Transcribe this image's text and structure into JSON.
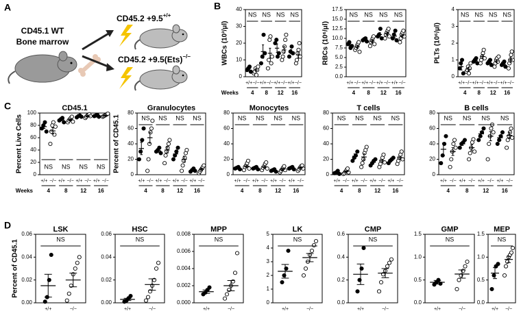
{
  "panel_labels": [
    "A",
    "B",
    "C",
    "D"
  ],
  "diagram": {
    "donor": [
      "CD45.1 WT",
      "Bone marrow"
    ],
    "recipients": [
      {
        "text": "CD45.2 +9.5",
        "sup": "+/+"
      },
      {
        "text": "CD45.2 +9.5(Ets)",
        "sup": "−/−"
      }
    ]
  },
  "chart_data": [
    {
      "type": "dot",
      "ylabel": "WBCs (10³/μl)",
      "timepoint_label": "Weeks",
      "timepoints": [
        "4",
        "8",
        "12",
        "16"
      ],
      "categories": [
        "+/+",
        "−/−",
        "+/+",
        "−/−",
        "+/+",
        "−/−",
        "+/+",
        "−/−"
      ],
      "markers": [
        "filled",
        "open"
      ],
      "points": [
        [
          4,
          5,
          6,
          3
        ],
        [
          2,
          3,
          5,
          1,
          4,
          6
        ],
        [
          8,
          12,
          25,
          14
        ],
        [
          5,
          10,
          22,
          24,
          8,
          12
        ],
        [
          20,
          22,
          12,
          14
        ],
        [
          10,
          12,
          15,
          18,
          22,
          25
        ],
        [
          12,
          15,
          18,
          14
        ],
        [
          8,
          10,
          14,
          16,
          20,
          12
        ]
      ],
      "mean": [
        5,
        4,
        15,
        14,
        17,
        16,
        15,
        13
      ],
      "sem": [
        0.7,
        0.8,
        4,
        3,
        2.5,
        2,
        1.2,
        2
      ],
      "ylim": [
        0,
        40
      ],
      "yticks": [
        0,
        10,
        20,
        30,
        40
      ],
      "annotations": [
        "NS",
        "NS",
        "NS",
        "NS"
      ],
      "annotation_position": "top"
    },
    {
      "type": "dot",
      "ylabel": "RBCs (10⁶/μl)",
      "timepoints": [
        "4",
        "8",
        "12",
        "16"
      ],
      "categories": [
        "+/+",
        "−/−",
        "+/+",
        "−/−",
        "+/+",
        "−/−",
        "+/+",
        "−/−"
      ],
      "markers": [
        "filled",
        "open"
      ],
      "points": [
        [
          8.5,
          9,
          7.5,
          8
        ],
        [
          7,
          7.5,
          8,
          8.5,
          9,
          6.5
        ],
        [
          9.5,
          9.8,
          10,
          9.2
        ],
        [
          8,
          9,
          9.5,
          10,
          10.5,
          8.5
        ],
        [
          10.5,
          11,
          12.5,
          10
        ],
        [
          10,
          11,
          11.5,
          12,
          12.5,
          10.5
        ],
        [
          10,
          11,
          12,
          9.5
        ],
        [
          9,
          10,
          11,
          11.5,
          12,
          10.5
        ]
      ],
      "mean": [
        8.3,
        7.8,
        9.6,
        9.3,
        11,
        11.3,
        10.6,
        10.7
      ],
      "sem": [
        0.3,
        0.4,
        0.2,
        0.4,
        0.5,
        0.4,
        0.5,
        0.4
      ],
      "ylim": [
        0,
        17.5
      ],
      "yticks": [
        {
          "value": 0,
          "label": "0.0"
        },
        2.5,
        {
          "value": 5,
          "label": "5.0"
        },
        7.5,
        {
          "value": 10,
          "label": "10.0"
        },
        12.5,
        {
          "value": 15,
          "label": "15.0"
        },
        17.5
      ],
      "annotations": [
        "NS",
        "NS",
        "NS",
        "NS"
      ],
      "annotation_position": "top"
    },
    {
      "type": "dot",
      "ylabel": "PLTs (10⁶/μl)",
      "timepoints": [
        "4",
        "8",
        "12",
        "16"
      ],
      "categories": [
        "+/+",
        "−/−",
        "+/+",
        "−/−",
        "+/+",
        "−/−",
        "+/+",
        "−/−"
      ],
      "markers": [
        "filled",
        "open"
      ],
      "points": [
        [
          0.5,
          0.8,
          1.0,
          0.2
        ],
        [
          0.3,
          0.4,
          0.6,
          0.2,
          0.5,
          0.8
        ],
        [
          0.9,
          1.0,
          1.1,
          0.8
        ],
        [
          0.8,
          1.0,
          1.2,
          1.4,
          1.6,
          1.1
        ],
        [
          0.8,
          0.9,
          1.0,
          0.7
        ],
        [
          0.6,
          0.8,
          1.0,
          1.1,
          0.9,
          1.2
        ],
        [
          0.7,
          0.8,
          0.9,
          0.6
        ],
        [
          0.5,
          0.8,
          1.0,
          1.3,
          1.5,
          1.0
        ]
      ],
      "mean": [
        0.6,
        0.45,
        0.95,
        1.2,
        0.85,
        0.93,
        0.75,
        1.0
      ],
      "sem": [
        0.2,
        0.1,
        0.06,
        0.12,
        0.06,
        0.09,
        0.06,
        0.15
      ],
      "ylim": [
        0,
        4
      ],
      "yticks": [
        0,
        1,
        2,
        3,
        4
      ],
      "annotations": [
        "NS",
        "NS",
        "NS",
        "NS"
      ],
      "annotation_position": "top"
    },
    {
      "type": "dot",
      "title": "CD45.1",
      "ylabel": "Percent Live Cells",
      "timepoint_label": "Weeks",
      "timepoints": [
        "4",
        "8",
        "12",
        "16"
      ],
      "categories": [
        "+/+",
        "−/−",
        "+/+",
        "−/−",
        "+/+",
        "−/−",
        "+/+",
        "−/−"
      ],
      "markers": [
        "filled",
        "open"
      ],
      "points": [
        [
          75,
          80,
          85,
          70
        ],
        [
          50,
          70,
          80,
          85,
          65,
          78
        ],
        [
          88,
          90,
          92,
          85
        ],
        [
          85,
          88,
          90,
          92,
          94,
          86
        ],
        [
          93,
          95,
          96,
          94
        ],
        [
          92,
          94,
          96,
          97,
          98,
          95
        ],
        [
          95,
          96,
          97,
          94
        ],
        [
          94,
          95,
          96,
          97,
          98,
          99
        ]
      ],
      "mean": [
        78,
        71,
        89,
        89,
        95,
        95,
        96,
        96
      ],
      "sem": [
        3,
        5,
        1.5,
        1.3,
        0.6,
        0.9,
        0.6,
        0.7
      ],
      "ylim": [
        0,
        100
      ],
      "yticks": [
        0,
        20,
        40,
        60,
        80,
        100
      ],
      "annotations": [
        "NS",
        "NS",
        "NS",
        "NS"
      ],
      "annotation_position": "bottom"
    },
    {
      "type": "dot",
      "title": "Granulocytes",
      "ylabel": "Percent of CD45.1",
      "timepoints": [
        "4",
        "8",
        "12",
        "16"
      ],
      "categories": [
        "+/+",
        "−/−",
        "+/+",
        "−/−",
        "+/+",
        "−/−",
        "+/+",
        "−/−"
      ],
      "markers": [
        "filled",
        "open"
      ],
      "points": [
        [
          20,
          30,
          45,
          60
        ],
        [
          5,
          20,
          40,
          55,
          60,
          70
        ],
        [
          30,
          32,
          35,
          28
        ],
        [
          15,
          25,
          30,
          35,
          40,
          45
        ],
        [
          20,
          25,
          30,
          35
        ],
        [
          5,
          12,
          18,
          22,
          28,
          32
        ],
        [
          4,
          6,
          8,
          5
        ],
        [
          2,
          4,
          6,
          8,
          10,
          12
        ]
      ],
      "mean": [
        34,
        48,
        31,
        32,
        27,
        20,
        6,
        7
      ],
      "sem": [
        8,
        7,
        2,
        4,
        3,
        4,
        1,
        1.5
      ],
      "ylim": [
        0,
        80
      ],
      "yticks": [
        0,
        20,
        40,
        60,
        80
      ],
      "annotations": [
        "NS",
        "NS",
        "NS",
        "NS"
      ],
      "annotation_position": "top"
    },
    {
      "type": "dot",
      "title": "Monocytes",
      "timepoints": [
        "4",
        "8",
        "12",
        "16"
      ],
      "categories": [
        "+/+",
        "−/−",
        "+/+",
        "−/−",
        "+/+",
        "−/−",
        "+/+",
        "−/−"
      ],
      "markers": [
        "filled",
        "open"
      ],
      "points": [
        [
          8,
          9,
          10,
          7
        ],
        [
          6,
          10,
          12,
          15,
          18,
          8
        ],
        [
          8,
          9,
          10,
          7
        ],
        [
          6,
          9,
          11,
          14,
          16,
          8
        ],
        [
          5,
          6,
          7,
          4
        ],
        [
          3,
          5,
          7,
          9,
          11,
          6
        ],
        [
          8,
          9,
          10,
          7
        ],
        [
          5,
          7,
          9,
          11,
          12,
          8
        ]
      ],
      "mean": [
        9,
        11,
        8.5,
        10,
        5.5,
        7,
        8.5,
        9
      ],
      "sem": [
        0.6,
        1.5,
        0.6,
        1.5,
        0.6,
        1.2,
        0.6,
        1
      ],
      "ylim": [
        0,
        80
      ],
      "yticks": [
        0,
        20,
        40,
        60,
        80
      ],
      "annotations": [
        "NS",
        "NS",
        "NS",
        "NS"
      ],
      "annotation_position": "top"
    },
    {
      "type": "dot",
      "title": "T cells",
      "timepoints": [
        "4",
        "8",
        "12",
        "16"
      ],
      "categories": [
        "+/+",
        "−/−",
        "+/+",
        "−/−",
        "+/+",
        "−/−",
        "+/+",
        "−/−"
      ],
      "markers": [
        "filled",
        "open"
      ],
      "points": [
        [
          2,
          3,
          5,
          1
        ],
        [
          1,
          2,
          4,
          6,
          8,
          3
        ],
        [
          18,
          22,
          25,
          30
        ],
        [
          10,
          15,
          20,
          28,
          32,
          36
        ],
        [
          12,
          15,
          18,
          20
        ],
        [
          10,
          14,
          18,
          22,
          26,
          16
        ],
        [
          15,
          18,
          20,
          22
        ],
        [
          14,
          18,
          22,
          26,
          30,
          20
        ]
      ],
      "mean": [
        3,
        4,
        24,
        23,
        16,
        18,
        19,
        22
      ],
      "sem": [
        0.8,
        1,
        3,
        4,
        2,
        2,
        1.5,
        2
      ],
      "ylim": [
        0,
        80
      ],
      "yticks": [
        0,
        20,
        40,
        60,
        80
      ],
      "annotations": [
        "NS",
        "NS",
        "NS",
        "NS"
      ],
      "annotation_position": "top"
    },
    {
      "type": "dot",
      "title": "B cells",
      "timepoints": [
        "4",
        "8",
        "12",
        "16"
      ],
      "categories": [
        "+/+",
        "−/−",
        "+/+",
        "−/−",
        "+/+",
        "−/−",
        "+/+",
        "−/−"
      ],
      "markers": [
        "filled",
        "open"
      ],
      "points": [
        [
          15,
          25,
          40,
          50
        ],
        [
          10,
          20,
          30,
          40,
          45,
          35
        ],
        [
          35,
          40,
          42,
          45
        ],
        [
          20,
          28,
          35,
          42,
          46,
          30
        ],
        [
          45,
          50,
          55,
          60
        ],
        [
          20,
          40,
          50,
          60,
          65,
          55
        ],
        [
          40,
          45,
          50,
          55
        ],
        [
          35,
          45,
          50,
          55,
          60,
          48
        ]
      ],
      "mean": [
        33,
        30,
        40,
        35,
        53,
        50,
        48,
        51
      ],
      "sem": [
        8,
        5,
        2,
        4,
        3,
        6,
        3,
        4
      ],
      "ylim": [
        0,
        80
      ],
      "yticks": [
        0,
        20,
        40,
        60,
        80
      ],
      "annotations": [
        "NS",
        "NS",
        "NS",
        "NS"
      ],
      "annotation_position": "top"
    },
    {
      "type": "dot",
      "title": "LSK",
      "ylabel": "Percent of CD45.1",
      "categories": [
        "+/+",
        "−/−"
      ],
      "markers": [
        "filled",
        "open"
      ],
      "points": [
        [
          0.001,
          0.005,
          0.02,
          0.042
        ],
        [
          0.002,
          0.008,
          0.015,
          0.025,
          0.03,
          0.035,
          0.04
        ]
      ],
      "mean": [
        0.015,
        0.02
      ],
      "sem": [
        0.01,
        0.006
      ],
      "ylim": [
        0,
        0.06
      ],
      "yticks": [
        {
          "value": 0,
          "label": "0.00"
        },
        0.02,
        0.04,
        0.06
      ],
      "annotations": [
        "NS"
      ],
      "annotation_position": "top"
    },
    {
      "type": "dot",
      "title": "HSC",
      "categories": [
        "+/+",
        "−/−"
      ],
      "markers": [
        "filled",
        "open"
      ],
      "points": [
        [
          0.001,
          0.002,
          0.004,
          0.006
        ],
        [
          0.002,
          0.005,
          0.01,
          0.015,
          0.02,
          0.03,
          0.035
        ]
      ],
      "mean": [
        0.003,
        0.016
      ],
      "sem": [
        0.001,
        0.005
      ],
      "ylim": [
        0,
        0.06
      ],
      "yticks": [
        {
          "value": 0,
          "label": "0.00"
        },
        0.02,
        0.04,
        0.06
      ],
      "annotations": [
        "NS"
      ],
      "annotation_position": "top"
    },
    {
      "type": "dot",
      "title": "MPP",
      "categories": [
        "+/+",
        "−/−"
      ],
      "markers": [
        "filled",
        "open"
      ],
      "points": [
        [
          0.001,
          0.0012,
          0.0015,
          0.0018
        ],
        [
          0.0005,
          0.001,
          0.0015,
          0.002,
          0.0025,
          0.0035,
          0.0058
        ]
      ],
      "mean": [
        0.0013,
        0.002
      ],
      "sem": [
        0.0002,
        0.0006
      ],
      "ylim": [
        0,
        0.008
      ],
      "yticks": [
        {
          "value": 0,
          "label": "0.000"
        },
        0.002,
        0.004,
        0.006,
        0.008
      ],
      "annotations": [
        "NS"
      ],
      "annotation_position": "top"
    },
    {
      "type": "dot",
      "title": "LK",
      "categories": [
        "+/+",
        "−/−"
      ],
      "markers": [
        "filled",
        "open"
      ],
      "points": [
        [
          1.5,
          2,
          2.5,
          3.8
        ],
        [
          2,
          2.5,
          3,
          3.5,
          3.8,
          4.2,
          4.5
        ]
      ],
      "mean": [
        2.3,
        3.3
      ],
      "sem": [
        0.5,
        0.3
      ],
      "ylim": [
        0,
        5
      ],
      "yticks": [
        0,
        1,
        2,
        3,
        4,
        5
      ],
      "annotations": [
        "NS"
      ],
      "annotation_position": "top"
    },
    {
      "type": "dot",
      "title": "CMP",
      "categories": [
        "+/+",
        "−/−"
      ],
      "markers": [
        "filled",
        "open"
      ],
      "points": [
        [
          0.1,
          0.2,
          0.3,
          0.48
        ],
        [
          0.1,
          0.18,
          0.25,
          0.28,
          0.32,
          0.35,
          0.38
        ]
      ],
      "mean": [
        0.25,
        0.26
      ],
      "sem": [
        0.09,
        0.04
      ],
      "ylim": [
        0,
        0.6
      ],
      "yticks": [
        {
          "value": 0,
          "label": "0.0"
        },
        0.2,
        0.4,
        0.6
      ],
      "annotations": [
        "NS"
      ],
      "annotation_position": "top"
    },
    {
      "type": "dot",
      "title": "GMP",
      "categories": [
        "+/+",
        "−/−"
      ],
      "markers": [
        "filled",
        "open"
      ],
      "points": [
        [
          0.4,
          0.45,
          0.5,
          0.42
        ],
        [
          0.3,
          0.5,
          0.6,
          0.7,
          0.8,
          0.9
        ]
      ],
      "mean": [
        0.45,
        0.63
      ],
      "sem": [
        0.04,
        0.09
      ],
      "ylim": [
        0,
        1.5
      ],
      "yticks": [
        {
          "value": 0,
          "label": "0.0"
        },
        0.5,
        {
          "value": 1,
          "label": "1.0"
        },
        1.5
      ],
      "annotations": [
        "NS"
      ],
      "annotation_position": "top"
    },
    {
      "type": "dot",
      "title": "MEP",
      "categories": [
        "+/+",
        "−/−"
      ],
      "markers": [
        "filled",
        "open"
      ],
      "points": [
        [
          0.3,
          0.6,
          0.8,
          0.85
        ],
        [
          0.6,
          0.8,
          0.9,
          1.0,
          1.05,
          1.1,
          1.2
        ]
      ],
      "mean": [
        0.65,
        0.95
      ],
      "sem": [
        0.12,
        0.07
      ],
      "ylim": [
        0,
        1.5
      ],
      "yticks": [
        {
          "value": 0,
          "label": "0.0"
        },
        0.5,
        {
          "value": 1,
          "label": "1.0"
        },
        1.5
      ],
      "annotations": [
        "NS"
      ],
      "annotation_position": "top"
    }
  ]
}
